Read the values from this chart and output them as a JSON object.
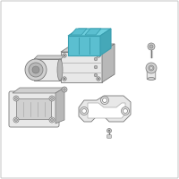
{
  "background_color": "#ffffff",
  "border_color": "#cccccc",
  "line_color": "#aaaaaa",
  "dark_line": "#777777",
  "blue_fill": "#5bbfd0",
  "blue_top": "#6ecfde",
  "blue_right": "#45a8b8",
  "blue_stroke": "#3a9fb0",
  "light_gray": "#e8e8e8",
  "mid_gray": "#d0d0d0",
  "dark_gray": "#b8b8b8"
}
